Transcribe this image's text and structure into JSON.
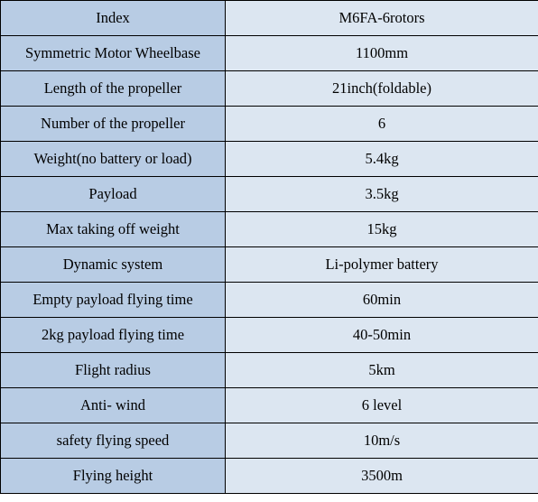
{
  "table": {
    "header": {
      "key": "Index",
      "value": "M6FA-6rotors"
    },
    "rows": [
      {
        "key": "Symmetric Motor Wheelbase",
        "value": "1100mm"
      },
      {
        "key": "Length of the propeller",
        "value": "21inch(foldable)"
      },
      {
        "key": "Number of the propeller",
        "value": "6"
      },
      {
        "key": "Weight(no battery or load)",
        "value": "5.4kg"
      },
      {
        "key": "Payload",
        "value": "3.5kg"
      },
      {
        "key": "Max taking off weight",
        "value": "15kg"
      },
      {
        "key": "Dynamic system",
        "value": "Li-polymer battery"
      },
      {
        "key": "Empty payload flying time",
        "value": "60min"
      },
      {
        "key": "2kg payload flying time",
        "value": "40-50min"
      },
      {
        "key": "Flight radius",
        "value": "5km"
      },
      {
        "key": "Anti- wind",
        "value": "6 level"
      },
      {
        "key": "safety flying speed",
        "value": "10m/s"
      },
      {
        "key": "Flying height",
        "value": "3500m"
      }
    ]
  },
  "colors": {
    "key_cell_bg": "#b8cce4",
    "value_cell_bg": "#dce6f1",
    "border": "#000000"
  }
}
